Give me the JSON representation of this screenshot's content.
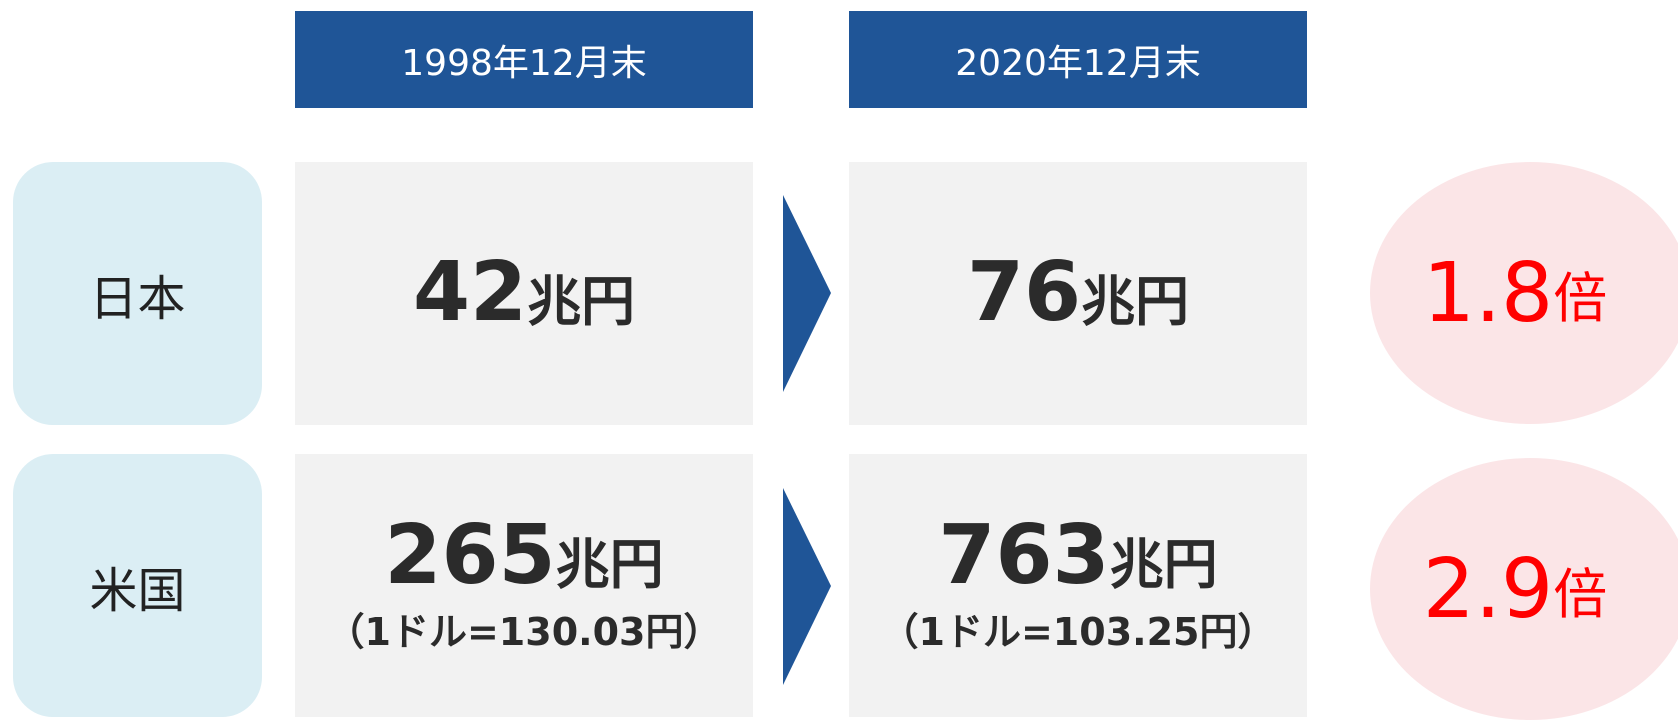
{
  "headers": [
    "1998年12月末",
    "2020年12月末"
  ],
  "rows": [
    {
      "label": "日本",
      "cells": [
        {
          "value": "42",
          "unit": "兆円"
        },
        {
          "value": "76",
          "unit": "兆円"
        }
      ],
      "ratio": {
        "value": "1.8",
        "unit": "倍"
      }
    },
    {
      "label": "米国",
      "cells": [
        {
          "value": "265",
          "unit": "兆円",
          "note": "（1ドル=130.03円）"
        },
        {
          "value": "763",
          "unit": "兆円",
          "note": "（1ドル=103.25円）"
        }
      ],
      "ratio": {
        "value": "2.9",
        "unit": "倍"
      }
    }
  ]
}
